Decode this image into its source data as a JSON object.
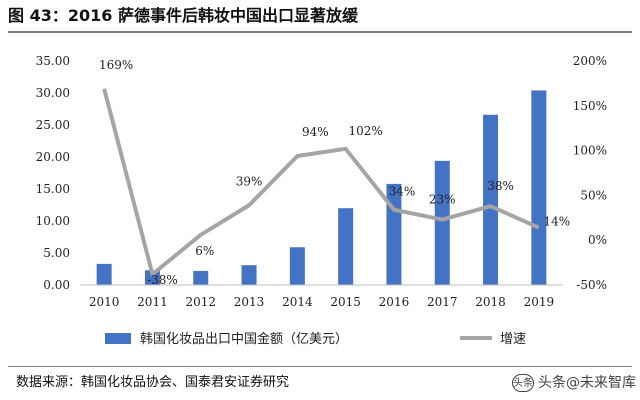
{
  "figure": {
    "title": "图 43：2016 萨德事件后韩妆中国出口显著放缓",
    "source": "数据来源：韩国化妆品协会、国泰君安证券研究",
    "watermark": "头条@未来智库",
    "watermark_logo": "头条"
  },
  "colors": {
    "bar": "#4472c4",
    "line": "#a5a5a5",
    "axis": "#bfbfbf",
    "rule": "#7f7f7f"
  },
  "chart_data": {
    "type": "bar",
    "title": "",
    "categories": [
      "2010",
      "2011",
      "2012",
      "2013",
      "2014",
      "2015",
      "2016",
      "2017",
      "2018",
      "2019"
    ],
    "series": [
      {
        "name": "韩国化妆品出口中国金额（亿美元）",
        "type": "bar",
        "axis": "left",
        "values": [
          3.3,
          2.3,
          2.2,
          3.1,
          5.9,
          12.0,
          15.8,
          19.4,
          26.6,
          30.4
        ]
      },
      {
        "name": "增速",
        "type": "line",
        "axis": "right",
        "values": [
          169,
          -38,
          6,
          39,
          94,
          102,
          34,
          23,
          38,
          14
        ],
        "data_labels": [
          "169%",
          "-38%",
          "6%",
          "39%",
          "94%",
          "102%",
          "34%",
          "23%",
          "38%",
          "14%"
        ]
      }
    ],
    "y_left": {
      "min": 0,
      "max": 35,
      "step": 5,
      "tick_labels": [
        "0.00",
        "5.00",
        "10.00",
        "15.00",
        "20.00",
        "25.00",
        "30.00",
        "35.00"
      ]
    },
    "y_right": {
      "min": -50,
      "max": 200,
      "step": 50,
      "tick_labels": [
        "-50%",
        "0%",
        "50%",
        "100%",
        "150%",
        "200%"
      ]
    },
    "grid": false,
    "legend_position": "bottom"
  }
}
